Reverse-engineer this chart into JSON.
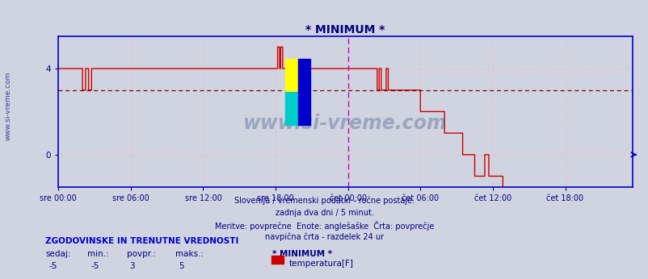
{
  "title": "* MINIMUM *",
  "title_color": "#000080",
  "bg_color": "#d0d4e0",
  "plot_bg_color": "#d0d4e0",
  "line_color": "#cc0000",
  "avg_line_color": "#800000",
  "avg_line_value": 3,
  "vline_color": "#cc00cc",
  "vline_pos": 288,
  "grid_color": "#ffaaaa",
  "axis_color": "#0000cc",
  "tick_label_color": "#000080",
  "ylim": [
    -1.5,
    5.5
  ],
  "yticks": [
    0,
    4
  ],
  "total_points": 576,
  "xticklabels": [
    "sre 00:00",
    "sre 06:00",
    "sre 12:00",
    "sre 18:00",
    "čet 00:00",
    "čet 06:00",
    "čet 12:00",
    "čet 18:00"
  ],
  "xtick_positions": [
    0,
    72,
    144,
    216,
    288,
    360,
    432,
    504
  ],
  "subtitle_lines": [
    "Slovenija / vremenski podatki - ročne postaje.",
    "zadnja dva dni / 5 minut.",
    "Meritve: povprečne  Enote: anglešaške  Črta: povprečje",
    "navpična črta - razdelek 24 ur"
  ],
  "footer_bold": "ZGODOVINSKE IN TRENUTNE VREDNOSTI",
  "footer_labels": [
    "sedaj:",
    "min.:",
    "povpr.:",
    "maks.:"
  ],
  "footer_values": [
    "-5",
    "-5",
    "3",
    "5"
  ],
  "legend_label": "* MINIMUM *",
  "legend_series": "temperatura[F]",
  "legend_color": "#cc0000",
  "watermark_text": "www.si-vreme.com",
  "left_label": "www.si-vreme.com",
  "data": [
    4,
    4,
    4,
    4,
    4,
    4,
    4,
    4,
    4,
    4,
    4,
    4,
    4,
    4,
    4,
    4,
    4,
    4,
    4,
    4,
    4,
    4,
    4,
    4,
    3,
    3,
    3,
    4,
    4,
    4,
    3,
    3,
    3,
    4,
    4,
    4,
    4,
    4,
    4,
    4,
    4,
    4,
    4,
    4,
    4,
    4,
    4,
    4,
    4,
    4,
    4,
    4,
    4,
    4,
    4,
    4,
    4,
    4,
    4,
    4,
    4,
    4,
    4,
    4,
    4,
    4,
    4,
    4,
    4,
    4,
    4,
    4,
    4,
    4,
    4,
    4,
    4,
    4,
    4,
    4,
    4,
    4,
    4,
    4,
    4,
    4,
    4,
    4,
    4,
    4,
    4,
    4,
    4,
    4,
    4,
    4,
    4,
    4,
    4,
    4,
    4,
    4,
    4,
    4,
    4,
    4,
    4,
    4,
    4,
    4,
    4,
    4,
    4,
    4,
    4,
    4,
    4,
    4,
    4,
    4,
    4,
    4,
    4,
    4,
    4,
    4,
    4,
    4,
    4,
    4,
    4,
    4,
    4,
    4,
    4,
    4,
    4,
    4,
    4,
    4,
    4,
    4,
    4,
    4,
    4,
    4,
    4,
    4,
    4,
    4,
    4,
    4,
    4,
    4,
    4,
    4,
    4,
    4,
    4,
    4,
    4,
    4,
    4,
    4,
    4,
    4,
    4,
    4,
    4,
    4,
    4,
    4,
    4,
    4,
    4,
    4,
    4,
    4,
    4,
    4,
    4,
    4,
    4,
    4,
    4,
    4,
    4,
    4,
    4,
    4,
    4,
    4,
    4,
    4,
    4,
    4,
    4,
    4,
    4,
    4,
    4,
    4,
    4,
    4,
    4,
    4,
    4,
    4,
    4,
    4,
    4,
    4,
    4,
    4,
    4,
    4,
    4,
    4,
    5,
    5,
    4,
    5,
    5,
    4,
    4,
    4,
    4,
    4,
    4,
    4,
    4,
    4,
    4,
    4,
    4,
    4,
    4,
    4,
    4,
    4,
    4,
    4,
    4,
    4,
    4,
    4,
    4,
    4,
    4,
    4,
    4,
    4,
    4,
    4,
    4,
    4,
    4,
    4,
    4,
    4,
    4,
    4,
    4,
    4,
    4,
    4,
    4,
    4,
    4,
    4,
    4,
    4,
    4,
    4,
    4,
    4,
    4,
    4,
    4,
    4,
    4,
    4,
    4,
    4,
    4,
    4,
    4,
    4,
    4,
    4,
    4,
    4,
    4,
    4,
    4,
    4,
    4,
    4,
    4,
    4,
    4,
    4,
    4,
    4,
    4,
    4,
    4,
    4,
    4,
    4,
    4,
    4,
    4,
    4,
    4,
    4,
    4,
    3,
    3,
    4,
    4,
    3,
    3,
    3,
    3,
    3,
    4,
    4,
    3,
    3,
    3,
    3,
    3,
    3,
    3,
    3,
    3,
    3,
    3,
    3,
    3,
    3,
    3,
    3,
    3,
    3,
    3,
    3,
    3,
    3,
    3,
    3,
    3,
    3,
    3,
    3,
    3,
    3,
    3,
    3,
    2,
    2,
    2,
    2,
    2,
    2,
    2,
    2,
    2,
    2,
    2,
    2,
    2,
    2,
    2,
    2,
    2,
    2,
    2,
    2,
    2,
    2,
    2,
    2,
    1,
    1,
    1,
    1,
    1,
    1,
    1,
    1,
    1,
    1,
    1,
    1,
    1,
    1,
    1,
    1,
    1,
    1,
    0,
    0,
    0,
    0,
    0,
    0,
    0,
    0,
    0,
    0,
    0,
    0,
    -1,
    -1,
    -1,
    -1,
    -1,
    -1,
    -1,
    -1,
    -1,
    -1,
    0,
    0,
    0,
    0,
    -1,
    -1,
    -1,
    -1,
    -1,
    -1,
    -1,
    -1,
    -1,
    -1,
    -1,
    -1,
    -1,
    -1,
    -5,
    -5,
    -5,
    -5,
    -5,
    -5,
    -5,
    -5,
    -5,
    -5,
    -5,
    -5,
    -5,
    -5,
    -5,
    -5,
    -5,
    -5,
    -5,
    -5,
    -5,
    -5,
    -5,
    -5,
    -5,
    -5,
    -5,
    -5,
    -5,
    -5,
    -5,
    -5,
    -5,
    -5,
    -5,
    -5,
    -5,
    -5,
    -5,
    -5,
    -5,
    -5,
    -5,
    -5,
    -5,
    -5,
    -5,
    -5,
    -5,
    -5,
    -5,
    -5,
    -5,
    -5,
    -5,
    -5,
    -5,
    -5,
    -5,
    -5,
    -5,
    -5,
    -5,
    -5,
    -5,
    -5,
    -5,
    -5,
    -5,
    -5,
    -5,
    -5,
    -5,
    -5,
    -5,
    -5,
    -5,
    -5,
    -5,
    -5,
    -5,
    -5,
    -5,
    -5,
    -5,
    -5,
    -5,
    -5,
    -5,
    -5,
    -5,
    -5,
    -5,
    -5,
    -5,
    -5,
    -5,
    -5,
    -5,
    -5,
    -5,
    -5,
    -5,
    -5,
    -5,
    -5,
    -5,
    -5,
    -5,
    -5,
    -5,
    -5,
    -5,
    -5,
    -5,
    -5,
    -5,
    -5,
    -5,
    -5,
    -5,
    -5,
    -5,
    -5,
    -5,
    -5,
    -5,
    -5,
    -5,
    -5
  ]
}
